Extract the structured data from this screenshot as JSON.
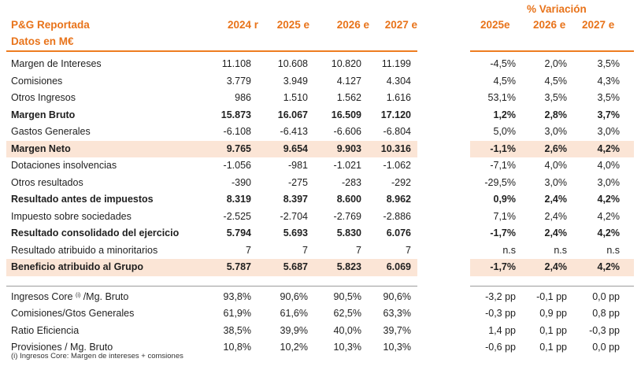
{
  "header": {
    "title_line1": "P&G Reportada",
    "title_line2": "Datos en M€",
    "years": [
      "2024 r",
      "2025 e",
      "2026 e",
      "2027 e"
    ],
    "variation_title": "% Variación",
    "variation_years": [
      "2025e",
      "2026 e",
      "2027 e"
    ]
  },
  "rows": [
    {
      "label": "Margen de Intereses",
      "values": [
        "11.108",
        "10.608",
        "10.820",
        "11.199"
      ],
      "var": [
        "-4,5%",
        "2,0%",
        "3,5%"
      ]
    },
    {
      "label": "Comisiones",
      "values": [
        "3.779",
        "3.949",
        "4.127",
        "4.304"
      ],
      "var": [
        "4,5%",
        "4,5%",
        "4,3%"
      ]
    },
    {
      "label": "Otros Ingresos",
      "values": [
        "986",
        "1.510",
        "1.562",
        "1.616"
      ],
      "var": [
        "53,1%",
        "3,5%",
        "3,5%"
      ]
    },
    {
      "label": "Margen Bruto",
      "values": [
        "15.873",
        "16.067",
        "16.509",
        "17.120"
      ],
      "var": [
        "1,2%",
        "2,8%",
        "3,7%"
      ]
    },
    {
      "label": "Gastos Generales",
      "values": [
        "-6.108",
        "-6.413",
        "-6.606",
        "-6.804"
      ],
      "var": [
        "5,0%",
        "3,0%",
        "3,0%"
      ]
    },
    {
      "label": "Margen Neto",
      "values": [
        "9.765",
        "9.654",
        "9.903",
        "10.316"
      ],
      "var": [
        "-1,1%",
        "2,6%",
        "4,2%"
      ]
    },
    {
      "label": "Dotaciones insolvencias",
      "values": [
        "-1.056",
        "-981",
        "-1.021",
        "-1.062"
      ],
      "var": [
        "-7,1%",
        "4,0%",
        "4,0%"
      ]
    },
    {
      "label": "Otros resultados",
      "values": [
        "-390",
        "-275",
        "-283",
        "-292"
      ],
      "var": [
        "-29,5%",
        "3,0%",
        "3,0%"
      ]
    },
    {
      "label": "Resultado antes de impuestos",
      "values": [
        "8.319",
        "8.397",
        "8.600",
        "8.962"
      ],
      "var": [
        "0,9%",
        "2,4%",
        "4,2%"
      ]
    },
    {
      "label": "Impuesto sobre sociedades",
      "values": [
        "-2.525",
        "-2.704",
        "-2.769",
        "-2.886"
      ],
      "var": [
        "7,1%",
        "2,4%",
        "4,2%"
      ]
    },
    {
      "label": "Resultado consolidado del ejercicio",
      "values": [
        "5.794",
        "5.693",
        "5.830",
        "6.076"
      ],
      "var": [
        "-1,7%",
        "2,4%",
        "4,2%"
      ]
    },
    {
      "label": "Resultado atribuido a minoritarios",
      "values": [
        "7",
        "7",
        "7",
        "7"
      ],
      "var": [
        "n.s",
        "n.s",
        "n.s"
      ]
    },
    {
      "label": "Beneficio atribuido al Grupo",
      "values": [
        "5.787",
        "5.687",
        "5.823",
        "6.069"
      ],
      "var": [
        "-1,7%",
        "2,4%",
        "4,2%"
      ]
    }
  ],
  "ratios": [
    {
      "label": "Ingresos Core",
      "sup": "(i)",
      "label_suffix": " /Mg. Bruto",
      "values": [
        "93,8%",
        "90,6%",
        "90,5%",
        "90,6%"
      ],
      "var": [
        "-3,2 pp",
        "-0,1 pp",
        "0,0 pp"
      ]
    },
    {
      "label": "Comisiones/Gtos Generales",
      "sup": "",
      "label_suffix": "",
      "values": [
        "61,9%",
        "61,6%",
        "62,5%",
        "63,3%"
      ],
      "var": [
        "-0,3 pp",
        "0,9 pp",
        "0,8 pp"
      ]
    },
    {
      "label": "Ratio Eficiencia",
      "sup": "",
      "label_suffix": "",
      "values": [
        "38,5%",
        "39,9%",
        "40,0%",
        "39,7%"
      ],
      "var": [
        "1,4 pp",
        "0,1 pp",
        "-0,3 pp"
      ]
    },
    {
      "label": "Provisiones / Mg. Bruto",
      "sup": "",
      "label_suffix": "",
      "values": [
        "10,8%",
        "10,2%",
        "10,3%",
        "10,3%"
      ],
      "var": [
        "-0,6 pp",
        "0,1 pp",
        "0,0 pp"
      ]
    }
  ],
  "footnote": "(i) Ingresos Core: Margen de intereses + comsiones",
  "colors": {
    "accent": "#e8731a",
    "shade": "#fbe5d6"
  }
}
